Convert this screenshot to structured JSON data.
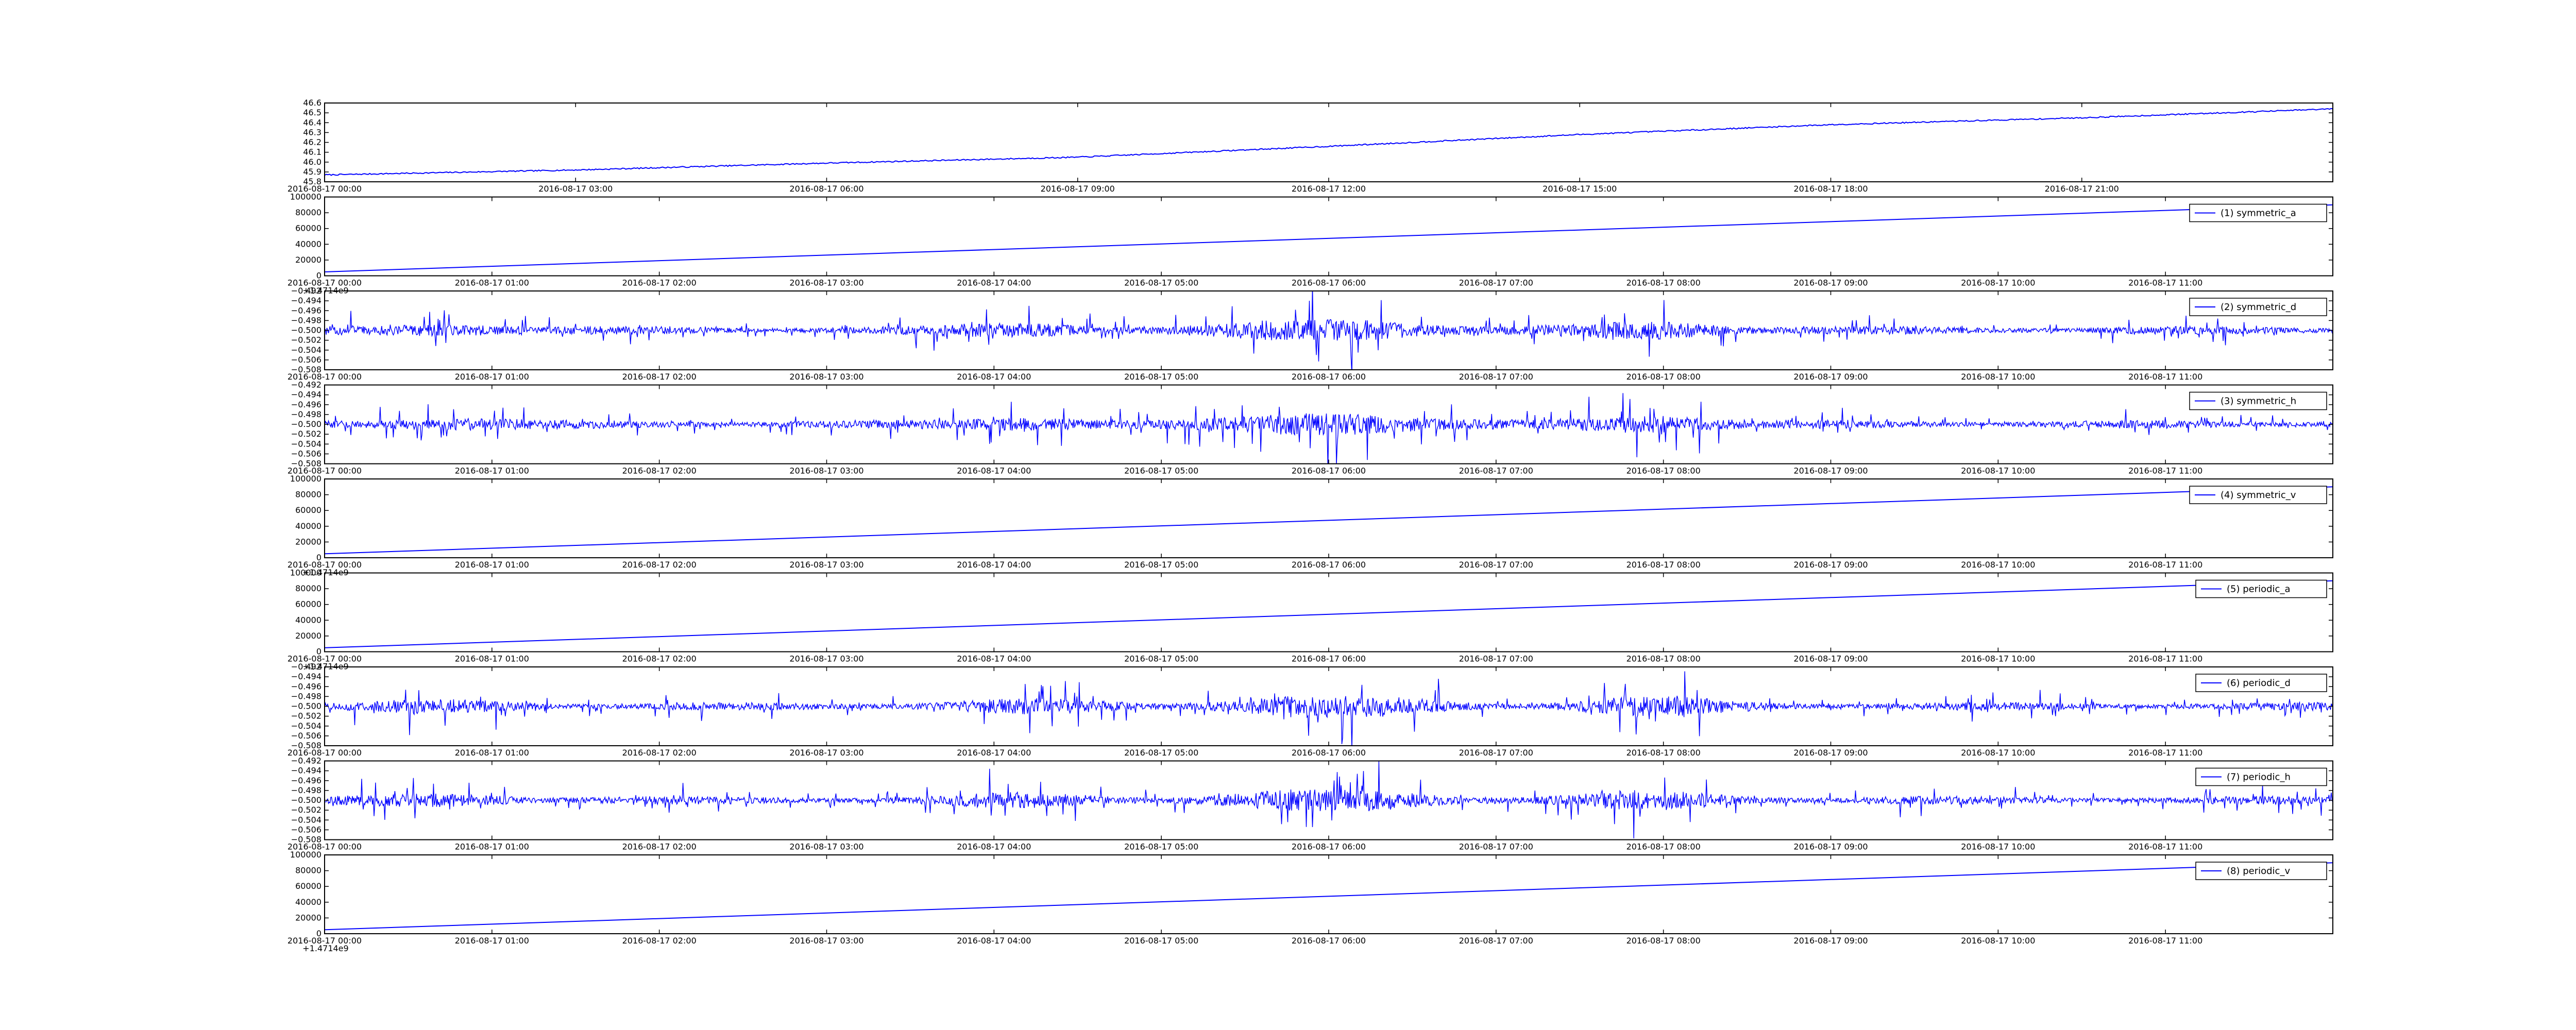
{
  "figure": {
    "line_color": "#0000ff",
    "axis_color": "#000000",
    "background": "#ffffff"
  },
  "chart_data": [
    {
      "type": "line",
      "title": "",
      "xlabel": "",
      "ylabel": "",
      "ylim": [
        45.8,
        46.6
      ],
      "yticks": [
        "45.8",
        "45.9",
        "46.0",
        "46.1",
        "46.2",
        "46.3",
        "46.4",
        "46.5",
        "46.6"
      ],
      "xticks": [
        "2016-08-17 00:00",
        "2016-08-17 03:00",
        "2016-08-17 06:00",
        "2016-08-17 09:00",
        "2016-08-17 12:00",
        "2016-08-17 15:00",
        "2016-08-17 18:00",
        "2016-08-17 21:00"
      ],
      "offset_text": "",
      "legend": "",
      "series": [
        {
          "x": [
            "2016-08-17 00:00",
            "2016-08-17 03:00",
            "2016-08-17 06:00",
            "2016-08-17 09:00",
            "2016-08-17 12:00",
            "2016-08-17 15:00",
            "2016-08-17 18:00",
            "2016-08-17 21:00",
            "2016-08-17 24:00"
          ],
          "y": [
            45.87,
            45.92,
            45.99,
            46.05,
            46.16,
            46.28,
            46.38,
            46.45,
            46.54
          ]
        }
      ]
    },
    {
      "type": "line",
      "title": "",
      "xlabel": "",
      "ylabel": "",
      "ylim": [
        0,
        100000
      ],
      "yticks": [
        "0",
        "20000",
        "40000",
        "60000",
        "80000",
        "100000"
      ],
      "xticks": [
        "2016-08-17 00:00",
        "2016-08-17 01:00",
        "2016-08-17 02:00",
        "2016-08-17 03:00",
        "2016-08-17 04:00",
        "2016-08-17 05:00",
        "2016-08-17 06:00",
        "2016-08-17 07:00",
        "2016-08-17 08:00",
        "2016-08-17 09:00",
        "2016-08-17 10:00",
        "2016-08-17 11:00"
      ],
      "offset_text": "+1.4714e9",
      "legend": "(1) symmetric_a",
      "series": [
        {
          "name": "(1) symmetric_a",
          "x": [
            "2016-08-17 00:00",
            "2016-08-17 12:00"
          ],
          "y": [
            5000,
            90000
          ]
        }
      ]
    },
    {
      "type": "line",
      "title": "",
      "xlabel": "",
      "ylabel": "",
      "ylim": [
        -0.508,
        -0.492
      ],
      "yticks": [
        "−0.508",
        "−0.506",
        "−0.504",
        "−0.502",
        "−0.500",
        "−0.498",
        "−0.496",
        "−0.494",
        "−0.492"
      ],
      "xticks": [
        "2016-08-17 00:00",
        "2016-08-17 01:00",
        "2016-08-17 02:00",
        "2016-08-17 03:00",
        "2016-08-17 04:00",
        "2016-08-17 05:00",
        "2016-08-17 06:00",
        "2016-08-17 07:00",
        "2016-08-17 08:00",
        "2016-08-17 09:00",
        "2016-08-17 10:00",
        "2016-08-17 11:00"
      ],
      "offset_text": "",
      "legend": "(2) symmetric_d",
      "series": [
        {
          "name": "(2) symmetric_d",
          "center": -0.5,
          "amplitude": 0.004
        }
      ]
    },
    {
      "type": "line",
      "title": "",
      "xlabel": "",
      "ylabel": "",
      "ylim": [
        -0.508,
        -0.492
      ],
      "yticks": [
        "−0.508",
        "−0.506",
        "−0.504",
        "−0.502",
        "−0.500",
        "−0.498",
        "−0.496",
        "−0.494",
        "−0.492"
      ],
      "xticks": [
        "2016-08-17 00:00",
        "2016-08-17 01:00",
        "2016-08-17 02:00",
        "2016-08-17 03:00",
        "2016-08-17 04:00",
        "2016-08-17 05:00",
        "2016-08-17 06:00",
        "2016-08-17 07:00",
        "2016-08-17 08:00",
        "2016-08-17 09:00",
        "2016-08-17 10:00",
        "2016-08-17 11:00"
      ],
      "offset_text": "",
      "legend": "(3) symmetric_h",
      "series": [
        {
          "name": "(3) symmetric_h",
          "center": -0.5,
          "amplitude": 0.004
        }
      ]
    },
    {
      "type": "line",
      "title": "",
      "xlabel": "",
      "ylabel": "",
      "ylim": [
        0,
        100000
      ],
      "yticks": [
        "0",
        "20000",
        "40000",
        "60000",
        "80000",
        "100000"
      ],
      "xticks": [
        "2016-08-17 00:00",
        "2016-08-17 01:00",
        "2016-08-17 02:00",
        "2016-08-17 03:00",
        "2016-08-17 04:00",
        "2016-08-17 05:00",
        "2016-08-17 06:00",
        "2016-08-17 07:00",
        "2016-08-17 08:00",
        "2016-08-17 09:00",
        "2016-08-17 10:00",
        "2016-08-17 11:00"
      ],
      "offset_text": "+1.4714e9",
      "legend": "(4) symmetric_v",
      "series": [
        {
          "name": "(4) symmetric_v",
          "x": [
            "2016-08-17 00:00",
            "2016-08-17 12:00"
          ],
          "y": [
            5000,
            90000
          ]
        }
      ]
    },
    {
      "type": "line",
      "title": "",
      "xlabel": "",
      "ylabel": "",
      "ylim": [
        0,
        100000
      ],
      "yticks": [
        "0",
        "20000",
        "40000",
        "60000",
        "80000",
        "100000"
      ],
      "xticks": [
        "2016-08-17 00:00",
        "2016-08-17 01:00",
        "2016-08-17 02:00",
        "2016-08-17 03:00",
        "2016-08-17 04:00",
        "2016-08-17 05:00",
        "2016-08-17 06:00",
        "2016-08-17 07:00",
        "2016-08-17 08:00",
        "2016-08-17 09:00",
        "2016-08-17 10:00",
        "2016-08-17 11:00"
      ],
      "offset_text": "+1.4714e9",
      "legend": "(5) periodic_a",
      "series": [
        {
          "name": "(5) periodic_a",
          "x": [
            "2016-08-17 00:00",
            "2016-08-17 12:00"
          ],
          "y": [
            5000,
            90000
          ]
        }
      ]
    },
    {
      "type": "line",
      "title": "",
      "xlabel": "",
      "ylabel": "",
      "ylim": [
        -0.508,
        -0.492
      ],
      "yticks": [
        "−0.508",
        "−0.506",
        "−0.504",
        "−0.502",
        "−0.500",
        "−0.498",
        "−0.496",
        "−0.494",
        "−0.492"
      ],
      "xticks": [
        "2016-08-17 00:00",
        "2016-08-17 01:00",
        "2016-08-17 02:00",
        "2016-08-17 03:00",
        "2016-08-17 04:00",
        "2016-08-17 05:00",
        "2016-08-17 06:00",
        "2016-08-17 07:00",
        "2016-08-17 08:00",
        "2016-08-17 09:00",
        "2016-08-17 10:00",
        "2016-08-17 11:00"
      ],
      "offset_text": "",
      "legend": "(6) periodic_d",
      "series": [
        {
          "name": "(6) periodic_d",
          "center": -0.5,
          "amplitude": 0.004
        }
      ]
    },
    {
      "type": "line",
      "title": "",
      "xlabel": "",
      "ylabel": "",
      "ylim": [
        -0.508,
        -0.492
      ],
      "yticks": [
        "−0.508",
        "−0.506",
        "−0.504",
        "−0.502",
        "−0.500",
        "−0.498",
        "−0.496",
        "−0.494",
        "−0.492"
      ],
      "xticks": [
        "2016-08-17 00:00",
        "2016-08-17 01:00",
        "2016-08-17 02:00",
        "2016-08-17 03:00",
        "2016-08-17 04:00",
        "2016-08-17 05:00",
        "2016-08-17 06:00",
        "2016-08-17 07:00",
        "2016-08-17 08:00",
        "2016-08-17 09:00",
        "2016-08-17 10:00",
        "2016-08-17 11:00"
      ],
      "offset_text": "",
      "legend": "(7) periodic_h",
      "series": [
        {
          "name": "(7) periodic_h",
          "center": -0.5,
          "amplitude": 0.004
        }
      ]
    },
    {
      "type": "line",
      "title": "",
      "xlabel": "",
      "ylabel": "",
      "ylim": [
        0,
        100000
      ],
      "yticks": [
        "0",
        "20000",
        "40000",
        "60000",
        "80000",
        "100000"
      ],
      "xticks": [
        "2016-08-17 00:00",
        "2016-08-17 01:00",
        "2016-08-17 02:00",
        "2016-08-17 03:00",
        "2016-08-17 04:00",
        "2016-08-17 05:00",
        "2016-08-17 06:00",
        "2016-08-17 07:00",
        "2016-08-17 08:00",
        "2016-08-17 09:00",
        "2016-08-17 10:00",
        "2016-08-17 11:00"
      ],
      "offset_text": "+1.4714e9",
      "legend": "(8) periodic_v",
      "series": [
        {
          "name": "(8) periodic_v",
          "x": [
            "2016-08-17 00:00",
            "2016-08-17 12:00"
          ],
          "y": [
            5000,
            90000
          ]
        }
      ]
    }
  ]
}
